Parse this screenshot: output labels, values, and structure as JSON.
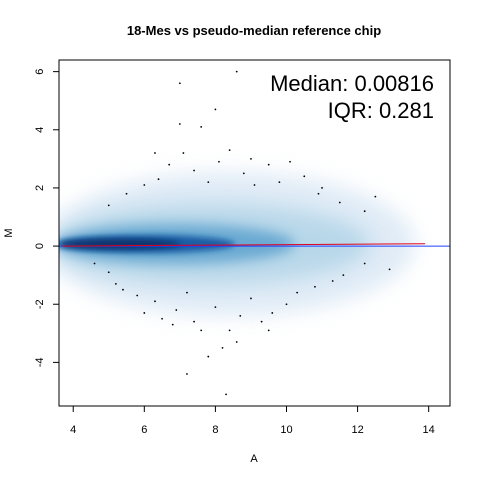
{
  "chart_data": {
    "type": "scatter",
    "plot_style": "smoothed density scatter (MA plot)",
    "title": "18-Mes vs pseudo-median reference chip",
    "xlabel": "A",
    "ylabel": "M",
    "xlim": [
      3.6,
      14.6
    ],
    "ylim": [
      -5.5,
      6.4
    ],
    "x_ticks": [
      4,
      6,
      8,
      10,
      12,
      14
    ],
    "y_ticks": [
      -4,
      -2,
      0,
      2,
      4,
      6
    ],
    "annotations": [
      {
        "text": "Median: 0.00816"
      },
      {
        "text": "IQR: 0.281"
      }
    ],
    "reference_line": {
      "y": 0,
      "color": "#1f3fff"
    },
    "fit_line": {
      "x": [
        3.7,
        13.9
      ],
      "y": [
        0.0,
        0.08
      ],
      "color": "#e0001a"
    },
    "colors": {
      "density_dark": "#08306b",
      "density_light": "#c6dbef",
      "outlier": "#000000"
    },
    "outliers": [
      [
        4.6,
        -0.6
      ],
      [
        5.0,
        -0.9
      ],
      [
        5.2,
        -1.3
      ],
      [
        5.4,
        -1.5
      ],
      [
        5.8,
        -1.7
      ],
      [
        6.3,
        -1.9
      ],
      [
        6.0,
        -2.3
      ],
      [
        6.5,
        -2.5
      ],
      [
        6.9,
        -2.2
      ],
      [
        7.2,
        -1.6
      ],
      [
        7.4,
        -2.6
      ],
      [
        8.0,
        -2.1
      ],
      [
        8.4,
        -2.9
      ],
      [
        8.7,
        -2.4
      ],
      [
        9.0,
        -1.8
      ],
      [
        9.3,
        -2.6
      ],
      [
        9.6,
        -2.3
      ],
      [
        10.0,
        -2.0
      ],
      [
        10.3,
        -1.6
      ],
      [
        10.8,
        -1.4
      ],
      [
        11.3,
        -1.2
      ],
      [
        11.6,
        -1.0
      ],
      [
        12.2,
        -0.6
      ],
      [
        12.9,
        -0.8
      ],
      [
        7.6,
        -2.9
      ],
      [
        8.2,
        -3.5
      ],
      [
        7.8,
        -3.8
      ],
      [
        7.2,
        -4.4
      ],
      [
        8.3,
        -5.1
      ],
      [
        8.6,
        -3.3
      ],
      [
        9.5,
        -2.9
      ],
      [
        6.8,
        -2.7
      ],
      [
        5.0,
        1.4
      ],
      [
        5.5,
        1.8
      ],
      [
        6.0,
        2.1
      ],
      [
        6.4,
        2.3
      ],
      [
        6.7,
        2.8
      ],
      [
        7.1,
        3.2
      ],
      [
        7.4,
        2.6
      ],
      [
        7.8,
        2.2
      ],
      [
        8.1,
        2.9
      ],
      [
        8.4,
        3.3
      ],
      [
        8.8,
        2.5
      ],
      [
        9.1,
        2.1
      ],
      [
        9.5,
        2.8
      ],
      [
        9.8,
        2.2
      ],
      [
        10.1,
        2.9
      ],
      [
        10.5,
        2.4
      ],
      [
        10.9,
        1.8
      ],
      [
        11.5,
        1.5
      ],
      [
        12.2,
        1.2
      ],
      [
        12.5,
        1.7
      ],
      [
        7.0,
        4.2
      ],
      [
        7.6,
        4.1
      ],
      [
        8.0,
        4.7
      ],
      [
        7.0,
        5.6
      ],
      [
        8.6,
        6.0
      ],
      [
        6.3,
        3.2
      ],
      [
        9.0,
        3.0
      ],
      [
        11.0,
        2.0
      ]
    ]
  }
}
